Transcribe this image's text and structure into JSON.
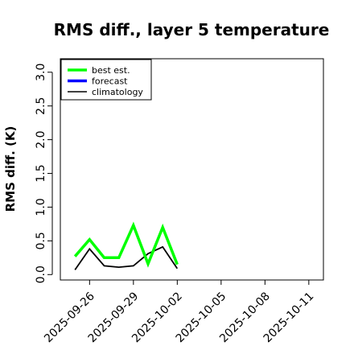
{
  "chart_data": {
    "type": "line",
    "title": "RMS diff., layer 5 temperature",
    "xlabel": "",
    "ylabel": "RMS diff. (K)",
    "ylim": [
      -0.08,
      3.2
    ],
    "yticks": [
      0.0,
      0.5,
      1.0,
      1.5,
      2.0,
      2.5,
      3.0
    ],
    "ytick_labels": [
      "0.0",
      "0.5",
      "1.0",
      "1.5",
      "2.0",
      "2.5",
      "3.0"
    ],
    "xlim": [
      "2025-09-24",
      "2025-10-12"
    ],
    "xticks": [
      "2025-09-26",
      "2025-09-29",
      "2025-10-02",
      "2025-10-05",
      "2025-10-08",
      "2025-10-11"
    ],
    "xtick_labels": [
      "2025-09-26",
      "2025-09-29",
      "2025-10-02",
      "2025-10-05",
      "2025-10-08",
      "2025-10-11"
    ],
    "highlight_xtick": "2025-10-02",
    "grid": false,
    "legend_position": "top-left",
    "series": [
      {
        "name": "best est.",
        "color": "#00ff00",
        "x": [
          "2025-09-25",
          "2025-09-26",
          "2025-09-27",
          "2025-09-28",
          "2025-09-29",
          "2025-09-30",
          "2025-10-01",
          "2025-10-02"
        ],
        "y": [
          0.27,
          0.52,
          0.25,
          0.25,
          0.73,
          0.16,
          0.7,
          0.15
        ]
      },
      {
        "name": "forecast",
        "color": "#0000ff",
        "x": [],
        "y": []
      },
      {
        "name": "climatology",
        "color": "#000000",
        "x": [
          "2025-09-25",
          "2025-09-26",
          "2025-09-27",
          "2025-09-28",
          "2025-09-29",
          "2025-09-30",
          "2025-10-01",
          "2025-10-02"
        ],
        "y": [
          0.07,
          0.38,
          0.13,
          0.11,
          0.13,
          0.31,
          0.41,
          0.09
        ]
      }
    ],
    "colors": {
      "highlight": "#228b22"
    }
  }
}
